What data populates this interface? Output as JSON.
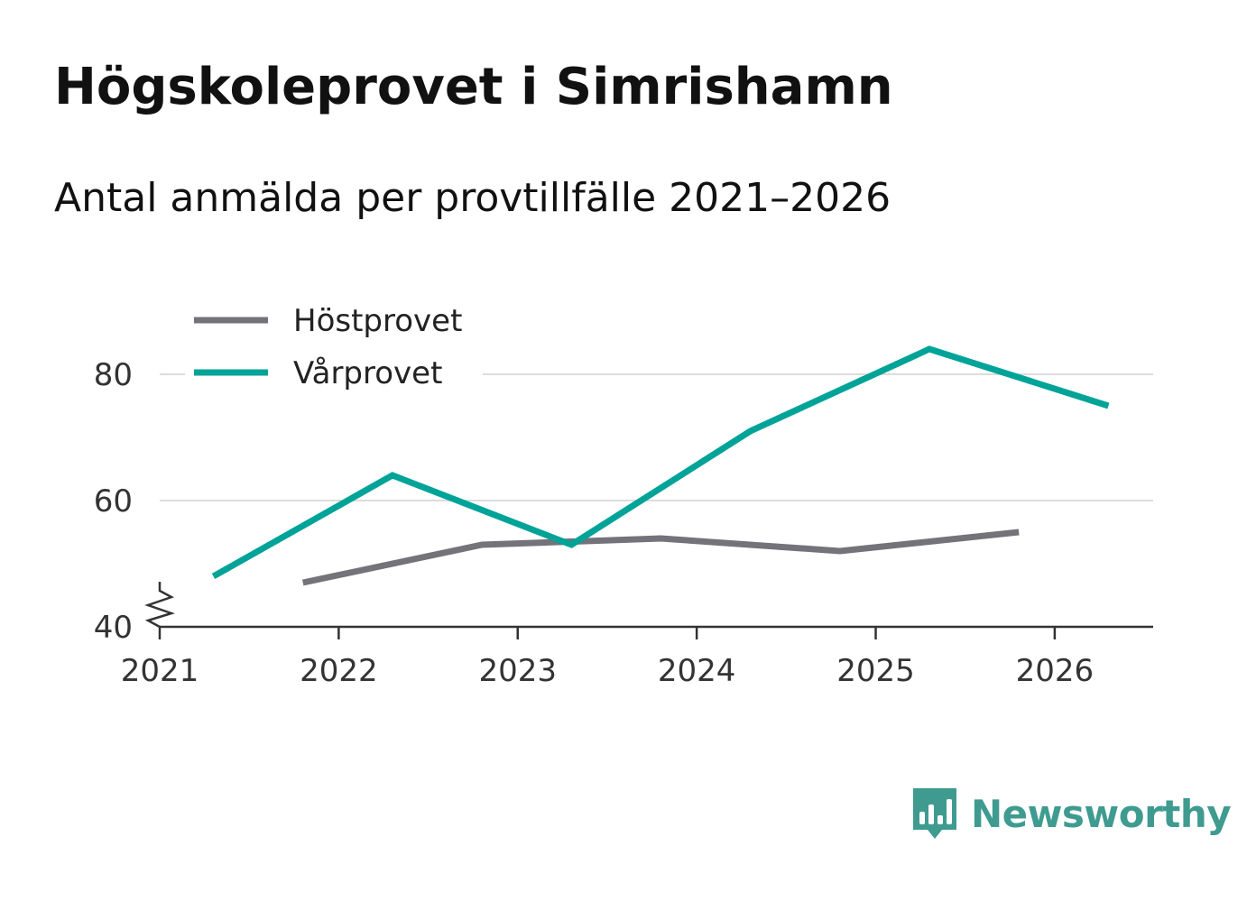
{
  "header": {
    "title": "Högskoleprovet i Simrishamn",
    "subtitle": "Antal anmälda per provtillfälle 2021–2026"
  },
  "brand": {
    "name": "Newsworthy",
    "icon": "newsworthy-logo-icon",
    "color": "#3f9b90"
  },
  "chart_data": {
    "type": "line",
    "title": "Högskoleprovet i Simrishamn",
    "subtitle": "Antal anmälda per provtillfälle 2021–2026",
    "xlabel": "",
    "ylabel": "",
    "xlim": [
      2021,
      2026.55
    ],
    "ylim": [
      40,
      90
    ],
    "y_axis_break": true,
    "x_ticks": [
      {
        "value": 2021,
        "label": "2021"
      },
      {
        "value": 2022,
        "label": "2022"
      },
      {
        "value": 2023,
        "label": "2023"
      },
      {
        "value": 2024,
        "label": "2024"
      },
      {
        "value": 2025,
        "label": "2025"
      },
      {
        "value": 2026,
        "label": "2026"
      }
    ],
    "y_ticks": [
      {
        "value": 40,
        "label": "40"
      },
      {
        "value": 60,
        "label": "60"
      },
      {
        "value": 80,
        "label": "80"
      }
    ],
    "grid": true,
    "legend_position": "top-left",
    "series": [
      {
        "name": "Höstprovet",
        "color": "#74737a",
        "points": [
          {
            "x": 2021.8,
            "y": 47
          },
          {
            "x": 2022.8,
            "y": 53
          },
          {
            "x": 2023.8,
            "y": 54
          },
          {
            "x": 2024.8,
            "y": 52
          },
          {
            "x": 2025.8,
            "y": 55
          }
        ]
      },
      {
        "name": "Vårprovet",
        "color": "#00a398",
        "points": [
          {
            "x": 2021.3,
            "y": 48
          },
          {
            "x": 2022.3,
            "y": 64
          },
          {
            "x": 2023.3,
            "y": 53
          },
          {
            "x": 2024.3,
            "y": 71
          },
          {
            "x": 2025.3,
            "y": 84
          },
          {
            "x": 2026.3,
            "y": 75
          }
        ]
      }
    ]
  }
}
